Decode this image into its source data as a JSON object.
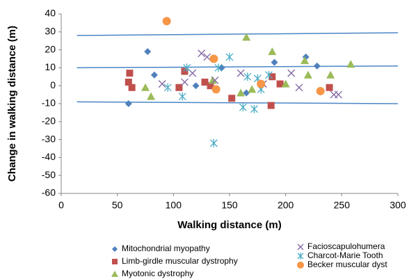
{
  "chart_data": {
    "type": "scatter",
    "x_label": "Walking distance (m)",
    "y_label": "Change in walking distance (m)",
    "xlim": [
      0,
      300
    ],
    "xticks": [
      0,
      50,
      100,
      150,
      200,
      250,
      300
    ],
    "ylim": [
      -60,
      40
    ],
    "yticks": [
      -60,
      -50,
      -40,
      -30,
      -20,
      -10,
      0,
      10,
      20,
      30,
      40
    ],
    "lines": [
      {
        "color": "#4a86c5",
        "x": [
          14,
          300
        ],
        "y": [
          28,
          29.5
        ]
      },
      {
        "color": "#4a86c5",
        "x": [
          14,
          300
        ],
        "y": [
          10,
          11
        ]
      },
      {
        "color": "#4a86c5",
        "x": [
          14,
          300
        ],
        "y": [
          -9,
          -10
        ]
      }
    ],
    "series": [
      {
        "name": "Mitochondrial myopathy",
        "color": "#4f81bd",
        "marker": "diamond",
        "x": [
          60,
          77,
          83,
          120,
          143,
          165,
          190,
          218,
          228
        ],
        "values": [
          -10,
          19,
          6,
          0,
          10,
          -4,
          13,
          16,
          11
        ]
      },
      {
        "name": "Limb-girdle muscular dystrophy",
        "color": "#c0504d",
        "marker": "square",
        "x": [
          60,
          61,
          63,
          105,
          110,
          128,
          133,
          152,
          187,
          188,
          195,
          239
        ],
        "values": [
          2,
          7,
          -1,
          -1,
          8,
          2,
          0,
          -7,
          -11,
          5,
          1,
          -1
        ]
      },
      {
        "name": "Myotonic dystrophy",
        "color": "#9bbb59",
        "marker": "triangle",
        "x": [
          75,
          80,
          135,
          160,
          165,
          170,
          188,
          200,
          217,
          220,
          240,
          258
        ],
        "values": [
          -1,
          -6,
          3,
          -4,
          27,
          -2,
          19,
          1,
          14,
          6,
          6,
          12
        ]
      },
      {
        "name": "Facioscapulohumera",
        "color": "#8064a2",
        "marker": "x",
        "x": [
          90,
          117,
          125,
          130,
          110,
          137,
          160,
          180,
          205,
          212,
          243,
          247
        ],
        "values": [
          1,
          7,
          18,
          16,
          2,
          3,
          7,
          1,
          7,
          -1,
          -5,
          -5
        ]
      },
      {
        "name": "Charcot-Marie Tooth",
        "color": "#4bacc6",
        "marker": "asterisk",
        "x": [
          95,
          108,
          112,
          136,
          140,
          150,
          162,
          166,
          172,
          175,
          178,
          185
        ],
        "values": [
          -1,
          -6,
          10,
          -32,
          10,
          16,
          -12,
          5,
          -13,
          4,
          -2,
          6
        ]
      },
      {
        "name": "Becker muscular dyst",
        "color": "#f79646",
        "marker": "circle",
        "x": [
          94,
          136,
          138,
          178,
          231
        ],
        "values": [
          36,
          15,
          -2,
          1,
          -3
        ]
      }
    ]
  }
}
